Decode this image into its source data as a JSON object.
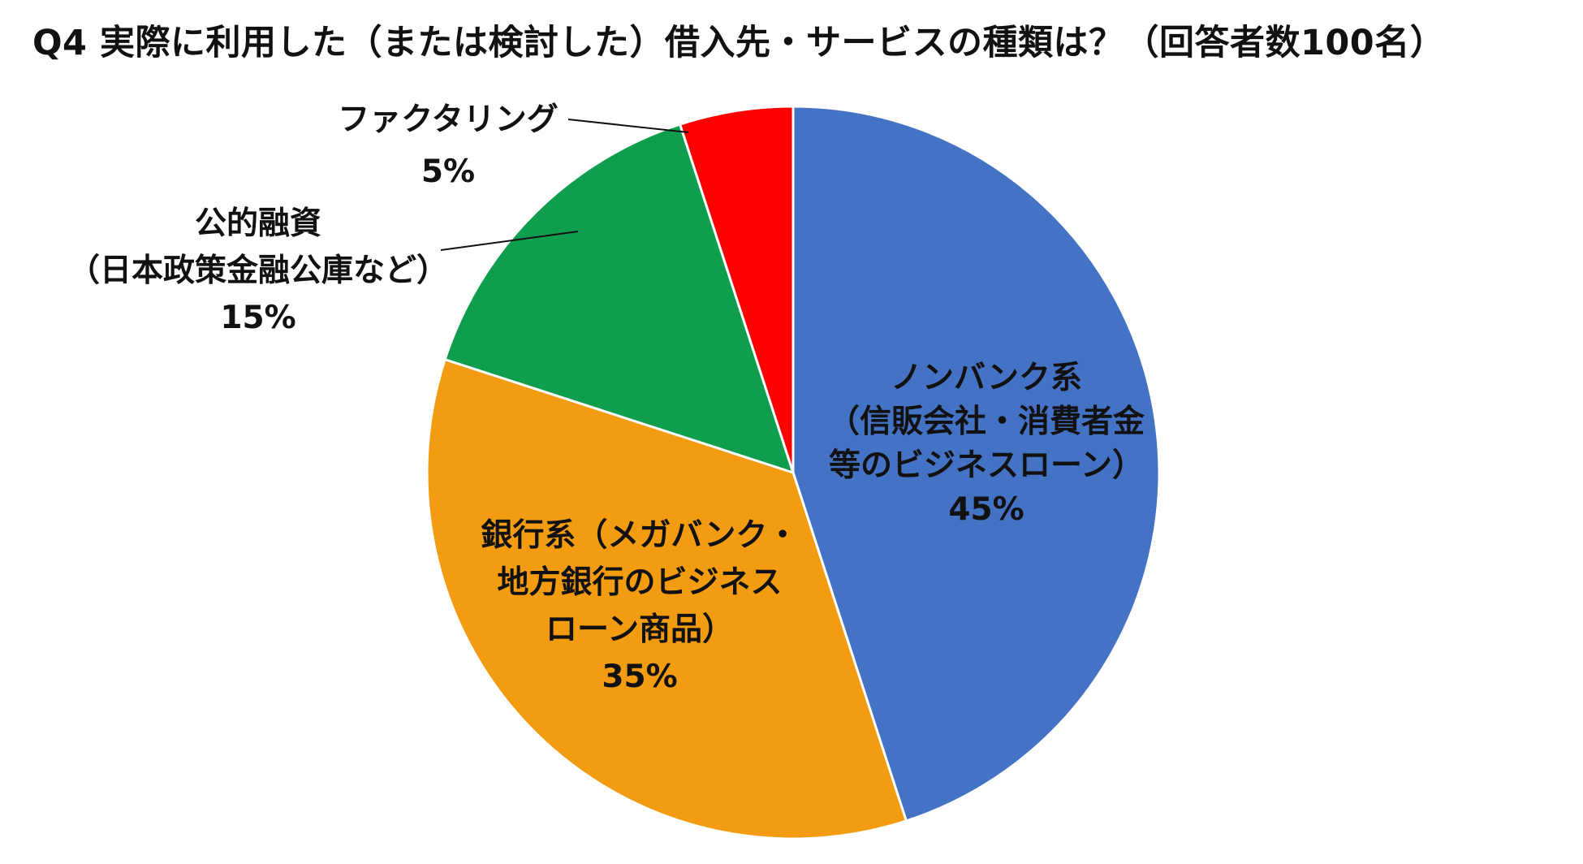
{
  "chart_data": {
    "type": "pie",
    "title": "Q4 実際に利用した（または検討した）借入先・サービスの種類は？（回答者数100名）",
    "slices": [
      {
        "lines": [
          "ノンバンク系",
          "（信販会社・消費者金",
          "等のビジネスローン）"
        ],
        "percent_label": "45%",
        "value": 45,
        "color": "#4472C4"
      },
      {
        "lines": [
          "銀行系（メガバンク・",
          "地方銀行のビジネス",
          "ローン商品）"
        ],
        "percent_label": "35%",
        "value": 35,
        "color": "#F39C12"
      },
      {
        "lines": [
          "公的融資",
          "（日本政策金融公庫など）"
        ],
        "percent_label": "15%",
        "value": 15,
        "color": "#0E9E4D"
      },
      {
        "lines": [
          "ファクタリング"
        ],
        "percent_label": "5%",
        "value": 5,
        "color": "#FF0000"
      }
    ]
  }
}
